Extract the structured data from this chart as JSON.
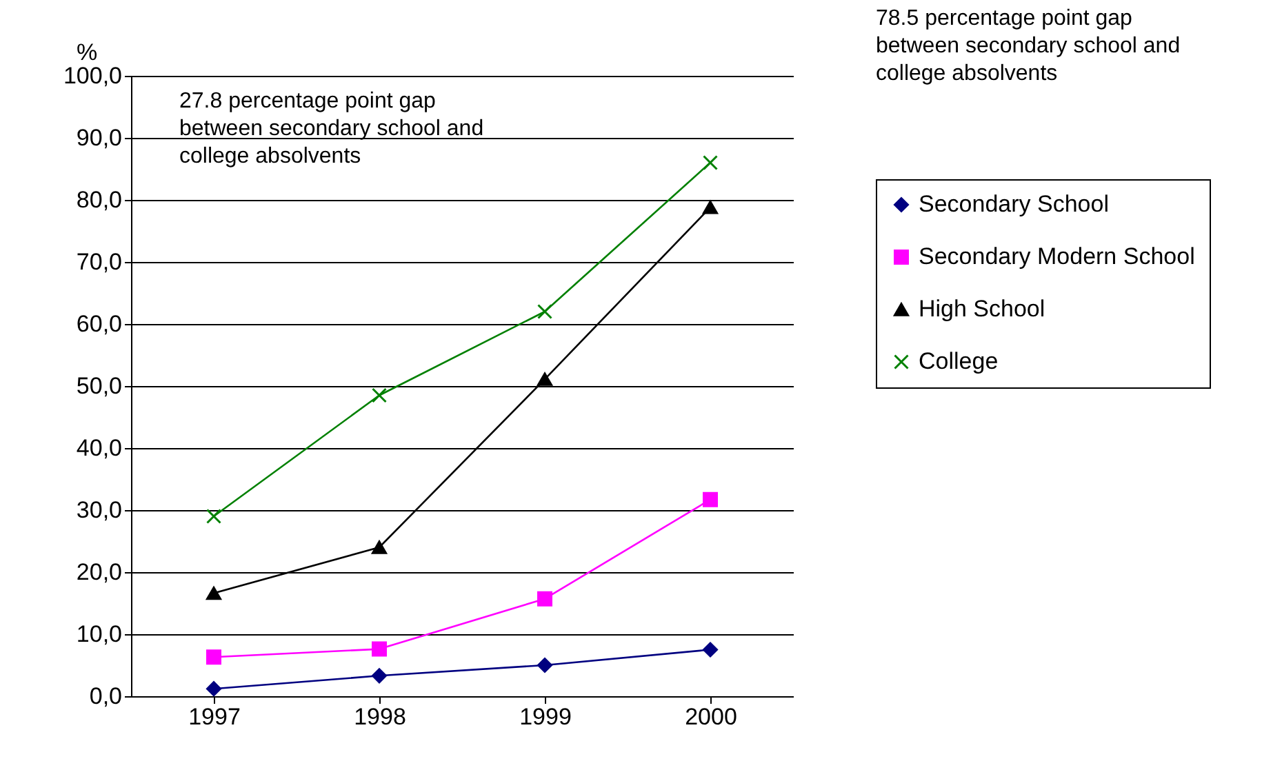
{
  "chart_data": {
    "type": "line",
    "ylabel": "%",
    "categories": [
      "1997",
      "1998",
      "1999",
      "2000"
    ],
    "series": [
      {
        "name": "Secondary School",
        "color": "#000080",
        "marker": "diamond",
        "values": [
          1.2,
          3.3,
          5.0,
          7.5
        ]
      },
      {
        "name": "Secondary Modern School",
        "color": "#ff00ff",
        "marker": "square",
        "values": [
          6.3,
          7.6,
          15.7,
          31.7
        ]
      },
      {
        "name": "High School",
        "color": "#000000",
        "marker": "triangle",
        "values": [
          16.6,
          24.0,
          51.1,
          78.8
        ]
      },
      {
        "name": "College",
        "color": "#008000",
        "marker": "cross",
        "values": [
          29.0,
          48.5,
          62.0,
          86.0
        ]
      }
    ],
    "ylim": [
      0,
      100
    ],
    "yticks": [
      {
        "value": 0,
        "label": "0,0"
      },
      {
        "value": 10,
        "label": "10,0"
      },
      {
        "value": 20,
        "label": "20,0"
      },
      {
        "value": 30,
        "label": "30,0"
      },
      {
        "value": 40,
        "label": "40,0"
      },
      {
        "value": 50,
        "label": "50,0"
      },
      {
        "value": 60,
        "label": "60,0"
      },
      {
        "value": 70,
        "label": "70,0"
      },
      {
        "value": 80,
        "label": "80,0"
      },
      {
        "value": 90,
        "label": "90,0"
      },
      {
        "value": 100,
        "label": "100,0"
      }
    ],
    "grid": "y",
    "legend": "right",
    "annotations": [
      "27.8 percentage point gap between secondary school and college absolvents",
      "78.5 percentage point gap between secondary school and college absolvents"
    ]
  }
}
